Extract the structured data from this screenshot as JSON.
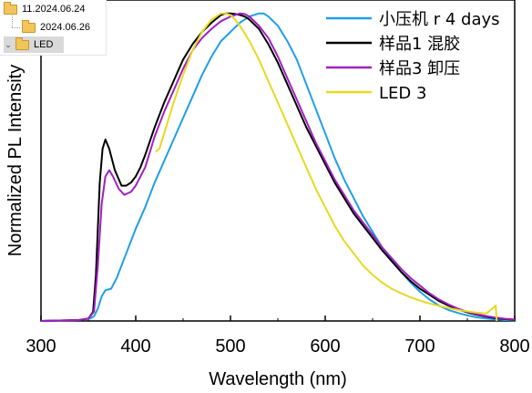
{
  "folder_tree": {
    "items": [
      {
        "label": "11.2024.06.24"
      },
      {
        "label": "2024.06.26"
      },
      {
        "label": "LED",
        "selected": true,
        "expanded": true
      }
    ]
  },
  "chart_data": {
    "type": "line",
    "title": "",
    "xlabel": "Wavelength (nm)",
    "ylabel": "Normalized PL Intensity",
    "xlim": [
      300,
      800
    ],
    "ylim": [
      0,
      1.02
    ],
    "xticks": [
      "300",
      "400",
      "500",
      "600",
      "700",
      "800"
    ],
    "yticks_labels_shown": false,
    "grid": false,
    "legend_position": "top-right",
    "series": [
      {
        "name": "小压机 r 4 days",
        "color": "#1f9ee8",
        "x": [
          300,
          340,
          352,
          356,
          360,
          364,
          368,
          374,
          380,
          390,
          400,
          410,
          420,
          430,
          440,
          450,
          460,
          470,
          480,
          490,
          500,
          510,
          520,
          530,
          535,
          540,
          550,
          560,
          570,
          580,
          590,
          600,
          610,
          620,
          630,
          640,
          650,
          660,
          670,
          680,
          690,
          700,
          710,
          720,
          730,
          740,
          750,
          760,
          770,
          780,
          790,
          800
        ],
        "y": [
          0,
          0.003,
          0.008,
          0.015,
          0.04,
          0.08,
          0.1,
          0.105,
          0.14,
          0.22,
          0.3,
          0.37,
          0.45,
          0.52,
          0.59,
          0.66,
          0.73,
          0.8,
          0.86,
          0.91,
          0.94,
          0.97,
          0.99,
          1.0,
          1.0,
          0.99,
          0.96,
          0.91,
          0.85,
          0.77,
          0.69,
          0.61,
          0.53,
          0.46,
          0.4,
          0.34,
          0.29,
          0.24,
          0.2,
          0.16,
          0.125,
          0.095,
          0.07,
          0.05,
          0.036,
          0.026,
          0.018,
          0.012,
          0.008,
          0.005,
          0.003,
          0.002
        ]
      },
      {
        "name": "样品1 混胶",
        "color": "#000000",
        "x": [
          300,
          340,
          350,
          355,
          358,
          362,
          365,
          368,
          372,
          378,
          385,
          390,
          395,
          400,
          405,
          410,
          420,
          430,
          440,
          450,
          460,
          470,
          480,
          490,
          495,
          500,
          505,
          510,
          515,
          520,
          530,
          540,
          550,
          560,
          570,
          580,
          590,
          600,
          610,
          620,
          630,
          640,
          650,
          660,
          670,
          680,
          690,
          700,
          710,
          720,
          730,
          740,
          750,
          760,
          770,
          780,
          790,
          800
        ],
        "y": [
          0,
          0.003,
          0.008,
          0.03,
          0.15,
          0.45,
          0.56,
          0.59,
          0.56,
          0.49,
          0.44,
          0.44,
          0.45,
          0.47,
          0.5,
          0.54,
          0.63,
          0.71,
          0.78,
          0.85,
          0.9,
          0.94,
          0.97,
          0.995,
          1.0,
          1.0,
          0.998,
          0.995,
          0.99,
          0.98,
          0.95,
          0.9,
          0.84,
          0.77,
          0.7,
          0.63,
          0.57,
          0.51,
          0.45,
          0.4,
          0.35,
          0.31,
          0.27,
          0.23,
          0.195,
          0.16,
          0.13,
          0.105,
          0.085,
          0.065,
          0.05,
          0.038,
          0.028,
          0.02,
          0.014,
          0.009,
          0.006,
          0.004
        ]
      },
      {
        "name": "样品3 卸压",
        "color": "#a020c0",
        "x": [
          300,
          340,
          350,
          356,
          360,
          364,
          368,
          372,
          376,
          382,
          388,
          395,
          400,
          410,
          420,
          430,
          440,
          450,
          460,
          470,
          480,
          490,
          500,
          505,
          510,
          515,
          520,
          530,
          540,
          550,
          560,
          570,
          580,
          590,
          600,
          610,
          620,
          630,
          640,
          650,
          660,
          670,
          680,
          690,
          700,
          710,
          720,
          730,
          740,
          750,
          760,
          770,
          780,
          790,
          800
        ],
        "y": [
          0,
          0.003,
          0.008,
          0.03,
          0.18,
          0.38,
          0.47,
          0.49,
          0.47,
          0.43,
          0.41,
          0.42,
          0.44,
          0.5,
          0.6,
          0.68,
          0.75,
          0.82,
          0.88,
          0.92,
          0.95,
          0.975,
          0.99,
          0.995,
          1.0,
          0.998,
          0.99,
          0.96,
          0.92,
          0.86,
          0.79,
          0.72,
          0.65,
          0.58,
          0.52,
          0.46,
          0.41,
          0.36,
          0.32,
          0.28,
          0.24,
          0.205,
          0.17,
          0.14,
          0.115,
          0.09,
          0.07,
          0.054,
          0.04,
          0.03,
          0.022,
          0.016,
          0.011,
          0.007,
          0.005
        ]
      },
      {
        "name": "LED 3",
        "color": "#e8d820",
        "x": [
          421,
          425,
          430,
          440,
          450,
          460,
          470,
          480,
          490,
          495,
          500,
          505,
          510,
          520,
          530,
          540,
          550,
          560,
          570,
          580,
          590,
          600,
          610,
          620,
          630,
          640,
          650,
          660,
          670,
          680,
          690,
          700,
          710,
          720,
          730,
          740,
          750,
          760,
          770,
          780,
          781
        ],
        "y": [
          0.55,
          0.56,
          0.61,
          0.71,
          0.8,
          0.88,
          0.94,
          0.98,
          1.0,
          1.0,
          0.995,
          0.98,
          0.96,
          0.91,
          0.85,
          0.78,
          0.71,
          0.64,
          0.57,
          0.5,
          0.43,
          0.37,
          0.31,
          0.26,
          0.22,
          0.18,
          0.15,
          0.125,
          0.105,
          0.09,
          0.077,
          0.066,
          0.057,
          0.049,
          0.042,
          0.036,
          0.031,
          0.027,
          0.024,
          0.05,
          0.0
        ]
      }
    ]
  }
}
